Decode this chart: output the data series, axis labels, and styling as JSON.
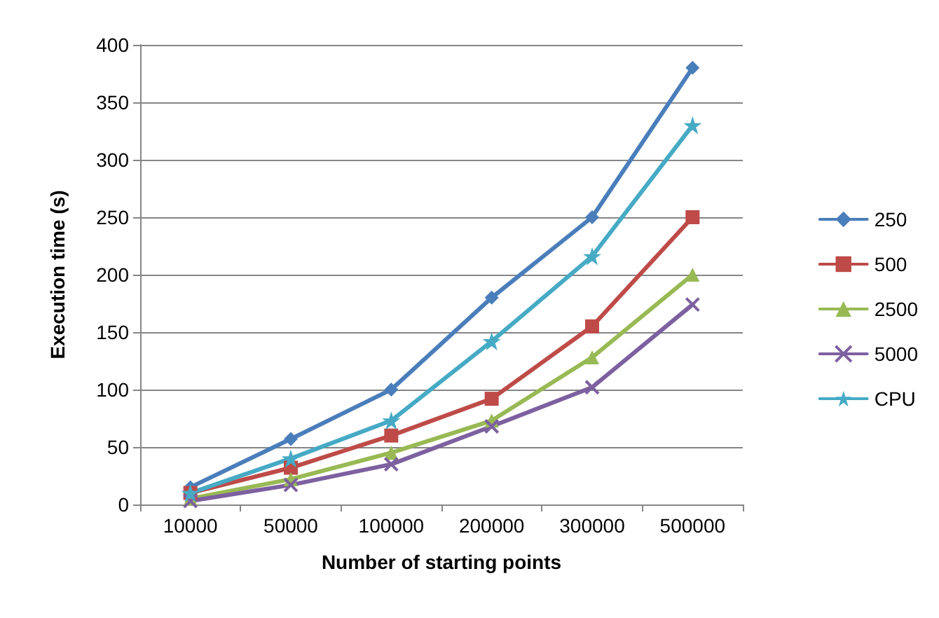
{
  "chart_data": {
    "type": "line",
    "xlabel": "Number of starting points",
    "ylabel": "Execution time (s)",
    "categories": [
      "10000",
      "50000",
      "100000",
      "200000",
      "300000",
      "500000"
    ],
    "ylim": [
      0,
      400
    ],
    "yticks": [
      0,
      50,
      100,
      150,
      200,
      250,
      300,
      350,
      400
    ],
    "grid": "y",
    "legend": "right",
    "line_style": "solid",
    "series": [
      {
        "name": "250",
        "color": "#4a7ebb",
        "marker": "diamond",
        "values": [
          15,
          57,
          100,
          180,
          250,
          380
        ]
      },
      {
        "name": "500",
        "color": "#be4b48",
        "marker": "square",
        "values": [
          10,
          32,
          60,
          92,
          155,
          250
        ]
      },
      {
        "name": "2500",
        "color": "#98b954",
        "marker": "triangle",
        "values": [
          5,
          22,
          45,
          73,
          128,
          200
        ]
      },
      {
        "name": "5000",
        "color": "#7d60a0",
        "marker": "cross",
        "values": [
          3,
          17,
          35,
          68,
          102,
          174
        ]
      },
      {
        "name": "CPU",
        "color": "#46aac5",
        "marker": "star",
        "values": [
          10,
          40,
          73,
          142,
          216,
          330
        ]
      }
    ]
  }
}
